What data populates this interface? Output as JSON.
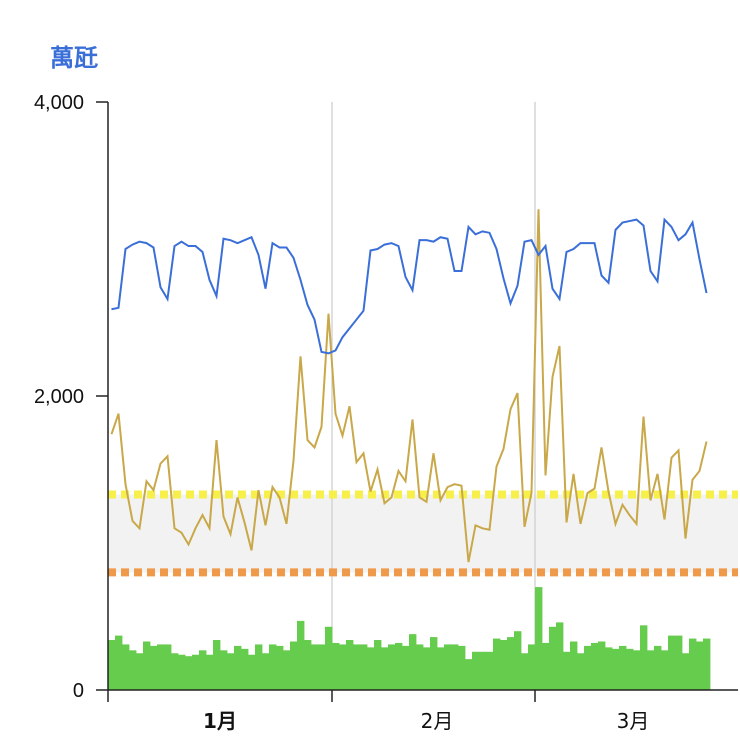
{
  "chart_data": {
    "type": "line",
    "unit_label": "萬瓩",
    "ylim": [
      0,
      4000
    ],
    "y_ticks": [
      {
        "value": 4000,
        "label": "4,000"
      },
      {
        "value": 2000,
        "label": "2,000"
      },
      {
        "value": 0,
        "label": "0"
      }
    ],
    "x_range": [
      0,
      90
    ],
    "month_labels": [
      {
        "day": 16,
        "label": "1月",
        "bold": true
      },
      {
        "day": 47,
        "label": "2月",
        "bold": false
      },
      {
        "day": 75,
        "label": "3月",
        "bold": false
      }
    ],
    "gridlines_at_day": [
      32,
      61
    ],
    "band": {
      "from": 800,
      "to": 1330,
      "color": "#f2f2f2"
    },
    "reference_lines": [
      {
        "value": 1330,
        "color": "#f7f04a"
      },
      {
        "value": 800,
        "color": "#ef9a4a"
      }
    ],
    "colors": {
      "blue": "#3b6fd8",
      "gold": "#c9a84a",
      "green": "#66cc4d",
      "axis": "#222222",
      "grid": "#cccccc"
    },
    "series": [
      {
        "key": "blue",
        "values": [
          2590,
          2600,
          3000,
          3030,
          3050,
          3040,
          3010,
          2740,
          2660,
          3020,
          3050,
          3020,
          3020,
          2980,
          2790,
          2680,
          3070,
          3060,
          3040,
          3060,
          3080,
          2960,
          2730,
          3040,
          3010,
          3010,
          2940,
          2790,
          2620,
          2520,
          2300,
          2290,
          2310,
          2400,
          2460,
          2520,
          2580,
          2990,
          3000,
          3030,
          3040,
          3020,
          2810,
          2720,
          3060,
          3060,
          3050,
          3080,
          3070,
          2850,
          2850,
          3150,
          3100,
          3120,
          3110,
          3000,
          2800,
          2630,
          2750,
          3050,
          3060,
          2960,
          3020,
          2730,
          2660,
          2980,
          3000,
          3040,
          3040,
          3040,
          2820,
          2770,
          3130,
          3180,
          3190,
          3200,
          3160,
          2850,
          2780,
          3200,
          3150,
          3060,
          3100,
          3180,
          2930,
          2700
        ]
      },
      {
        "key": "gold",
        "values": [
          1740,
          1880,
          1400,
          1150,
          1100,
          1420,
          1360,
          1540,
          1590,
          1100,
          1070,
          990,
          1100,
          1190,
          1100,
          1700,
          1180,
          1060,
          1310,
          1140,
          950,
          1360,
          1120,
          1380,
          1310,
          1130,
          1560,
          2270,
          1700,
          1650,
          1790,
          2560,
          1880,
          1730,
          1930,
          1550,
          1610,
          1350,
          1500,
          1270,
          1310,
          1490,
          1420,
          1840,
          1310,
          1280,
          1610,
          1290,
          1380,
          1400,
          1390,
          870,
          1120,
          1100,
          1090,
          1520,
          1640,
          1910,
          2020,
          1110,
          1340,
          3270,
          1460,
          2130,
          2340,
          1140,
          1470,
          1130,
          1340,
          1370,
          1650,
          1350,
          1130,
          1260,
          1190,
          1130,
          1860,
          1290,
          1470,
          1160,
          1580,
          1630,
          1030,
          1430,
          1490,
          1690
        ]
      },
      {
        "key": "green",
        "values": [
          340,
          370,
          310,
          270,
          250,
          330,
          300,
          310,
          310,
          250,
          240,
          230,
          240,
          270,
          240,
          340,
          270,
          250,
          300,
          280,
          240,
          310,
          250,
          310,
          300,
          270,
          330,
          470,
          340,
          310,
          310,
          430,
          320,
          310,
          340,
          310,
          310,
          290,
          340,
          290,
          310,
          320,
          300,
          380,
          310,
          290,
          360,
          290,
          310,
          310,
          300,
          210,
          260,
          260,
          260,
          350,
          340,
          360,
          400,
          250,
          310,
          700,
          320,
          430,
          460,
          260,
          330,
          250,
          300,
          320,
          330,
          290,
          280,
          300,
          280,
          270,
          440,
          270,
          300,
          270,
          370,
          370,
          250,
          350,
          330,
          350
        ]
      }
    ]
  }
}
